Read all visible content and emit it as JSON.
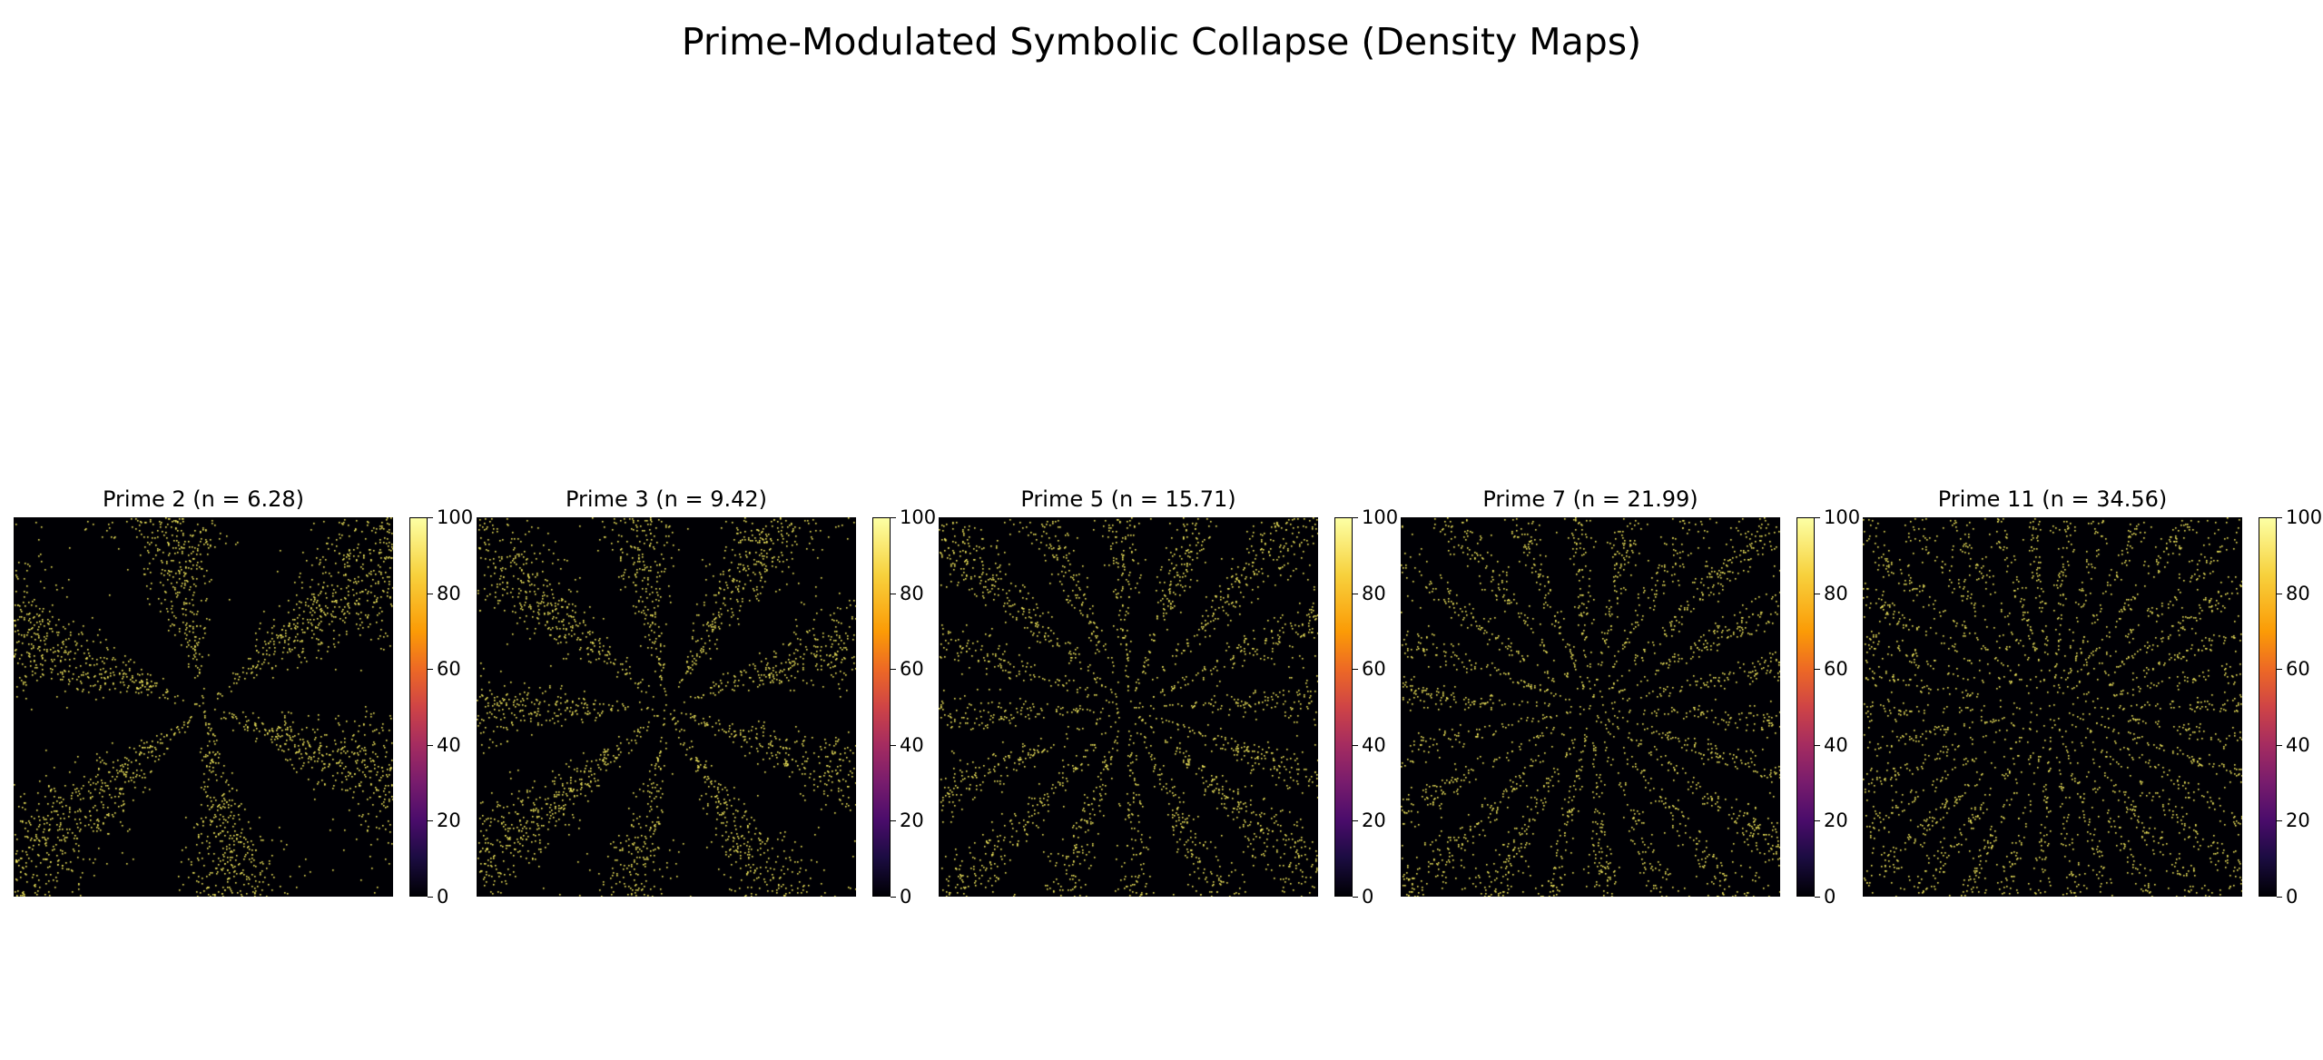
{
  "title": "Prime-Modulated Symbolic Collapse (Density Maps)",
  "chart_data": {
    "type": "heatmap",
    "title": "Prime-Modulated Symbolic Collapse (Density Maps)",
    "colormap": "inferno",
    "point_color": "#f0e65a",
    "background_color": "#000004",
    "panels": [
      {
        "title": "Prime 2 (n = 6.28)",
        "prime": 2,
        "n": 6.28,
        "rays": 6,
        "spread": 0.2,
        "colorbar": {
          "range": [
            0,
            100
          ],
          "ticks": [
            "0",
            "20",
            "40",
            "60",
            "80",
            "100"
          ]
        }
      },
      {
        "title": "Prime 3 (n = 9.42)",
        "prime": 3,
        "n": 9.42,
        "rays": 9,
        "spread": 0.14,
        "colorbar": {
          "range": [
            0,
            100
          ],
          "ticks": [
            "0",
            "20",
            "40",
            "60",
            "80",
            "100"
          ]
        }
      },
      {
        "title": "Prime 5 (n = 15.71)",
        "prime": 5,
        "n": 15.71,
        "rays": 16,
        "spread": 0.085,
        "colorbar": {
          "range": [
            0,
            100
          ],
          "ticks": [
            "0",
            "20",
            "40",
            "60",
            "80",
            "100"
          ]
        }
      },
      {
        "title": "Prime 7 (n = 21.99)",
        "prime": 7,
        "n": 21.99,
        "rays": 22,
        "spread": 0.06,
        "colorbar": {
          "range": [
            0,
            100
          ],
          "ticks": [
            "0",
            "20",
            "40",
            "60",
            "80",
            "100"
          ]
        }
      },
      {
        "title": "Prime 11 (n = 34.56)",
        "prime": 11,
        "n": 34.56,
        "rays": 34,
        "spread": 0.04,
        "colorbar": {
          "range": [
            0,
            100
          ],
          "ticks": [
            "0",
            "20",
            "40",
            "60",
            "80",
            "100"
          ]
        }
      }
    ]
  }
}
